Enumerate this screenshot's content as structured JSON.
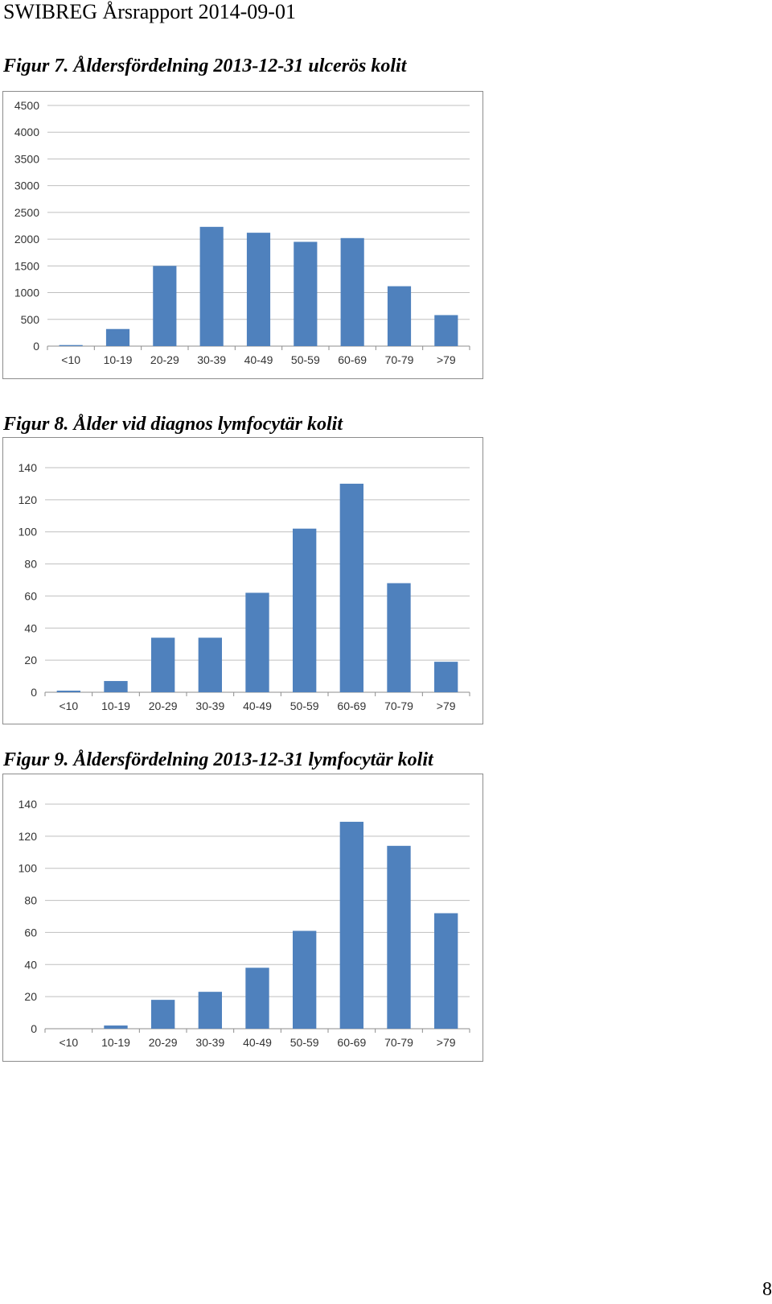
{
  "header": {
    "title": "SWIBREG Årsrapport 2014-09-01"
  },
  "page_number": "8",
  "colors": {
    "bar": "#4f81bd",
    "grid": "#bfbfbf",
    "axis": "#8c8c8c",
    "tick_text": "#333333"
  },
  "chart_data": [
    {
      "type": "bar",
      "caption": "Figur 7. Åldersfördelning 2013-12-31 ulcerös kolit",
      "categories": [
        "<10",
        "10-19",
        "20-29",
        "30-39",
        "40-49",
        "50-59",
        "60-69",
        "70-79",
        ">79"
      ],
      "values": [
        20,
        320,
        1500,
        2230,
        2120,
        1950,
        2020,
        1120,
        580
      ],
      "ylim": [
        0,
        4500
      ],
      "yticks": [
        "0",
        "500",
        "1000",
        "1500",
        "2000",
        "2500",
        "3000",
        "3500",
        "4000",
        "4500"
      ],
      "grid": true
    },
    {
      "type": "bar",
      "caption": "Figur 8. Ålder vid diagnos lymfocytär kolit",
      "categories": [
        "<10",
        "10-19",
        "20-29",
        "30-39",
        "40-49",
        "50-59",
        "60-69",
        "70-79",
        ">79"
      ],
      "values": [
        1,
        7,
        34,
        34,
        62,
        102,
        130,
        68,
        19
      ],
      "ylim": [
        0,
        140
      ],
      "yticks": [
        "0",
        "20",
        "40",
        "60",
        "80",
        "100",
        "120",
        "140"
      ],
      "grid": true
    },
    {
      "type": "bar",
      "caption": "Figur 9. Åldersfördelning 2013-12-31 lymfocytär kolit",
      "categories": [
        "<10",
        "10-19",
        "20-29",
        "30-39",
        "40-49",
        "50-59",
        "60-69",
        "70-79",
        ">79"
      ],
      "values": [
        0,
        2,
        18,
        23,
        38,
        61,
        129,
        114,
        72
      ],
      "ylim": [
        0,
        140
      ],
      "yticks": [
        "0",
        "20",
        "40",
        "60",
        "80",
        "100",
        "120",
        "140"
      ],
      "grid": true
    }
  ]
}
